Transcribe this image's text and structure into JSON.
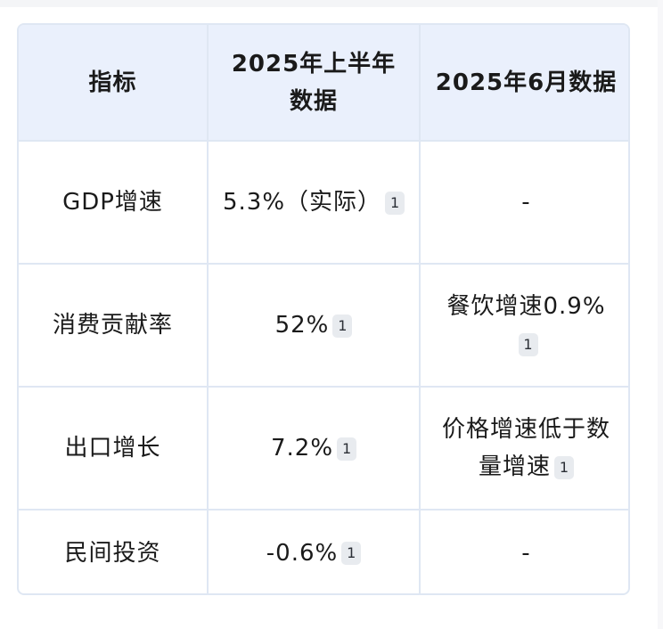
{
  "table": {
    "headers": [
      "指标",
      "2025年上半年数据",
      "2025年6月数据"
    ],
    "rows": [
      {
        "indicator": "GDP增速",
        "h1_value": "5.3%（实际）",
        "h1_cite": "1",
        "jun_value": "-",
        "jun_cite": ""
      },
      {
        "indicator": "消费贡献率",
        "h1_value": "52%",
        "h1_cite": "1",
        "jun_value": "餐饮增速0.9%",
        "jun_cite": "1"
      },
      {
        "indicator": "出口增长",
        "h1_value": "7.2%",
        "h1_cite": "1",
        "jun_value": "价格增速低于数量增速",
        "jun_cite": "1"
      },
      {
        "indicator": "民间投资",
        "h1_value": "-0.6%",
        "h1_cite": "1",
        "jun_value": "-",
        "jun_cite": ""
      }
    ]
  },
  "colors": {
    "header_bg": "#eaf0fc",
    "border": "#dfe7f3",
    "citation_bg": "#e8ebef",
    "text": "#1a1a1a"
  }
}
